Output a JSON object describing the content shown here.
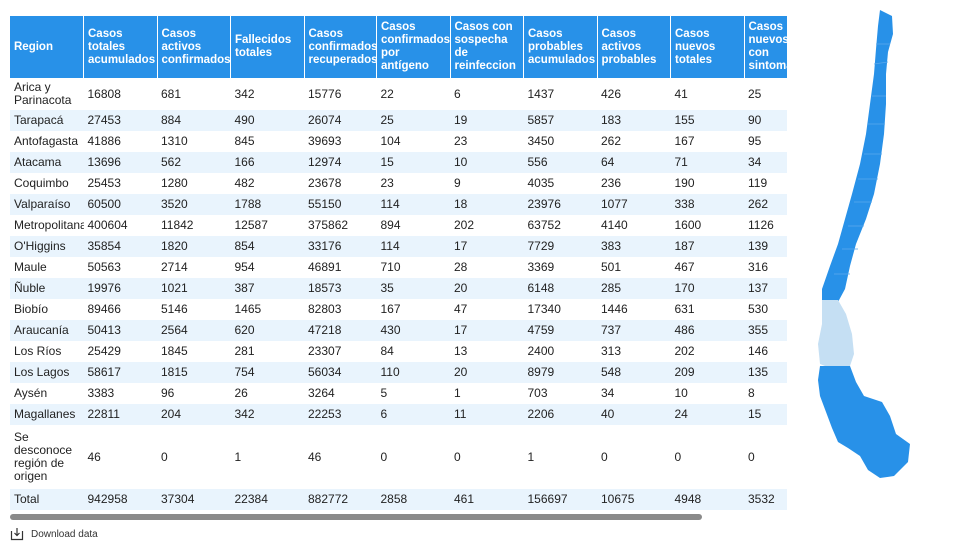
{
  "table": {
    "headers": [
      "Region",
      "Casos totales acumulados",
      "Casos activos confirmados",
      "Fallecidos totales",
      "Casos confirmados recuperados",
      "Casos confirmados por antígeno",
      "Casos con sospecha de reinfeccion",
      "Casos probables acumulados",
      "Casos activos probables",
      "Casos nuevos totales",
      "Casos nuevos con sintomas"
    ],
    "rows": [
      [
        "Arica y Parinacota",
        "16808",
        "681",
        "342",
        "15776",
        "22",
        "6",
        "1437",
        "426",
        "41",
        "25"
      ],
      [
        "Tarapacá",
        "27453",
        "884",
        "490",
        "26074",
        "25",
        "19",
        "5857",
        "183",
        "155",
        "90"
      ],
      [
        "Antofagasta",
        "41886",
        "1310",
        "845",
        "39693",
        "104",
        "23",
        "3450",
        "262",
        "167",
        "95"
      ],
      [
        "Atacama",
        "13696",
        "562",
        "166",
        "12974",
        "15",
        "10",
        "556",
        "64",
        "71",
        "34"
      ],
      [
        "Coquimbo",
        "25453",
        "1280",
        "482",
        "23678",
        "23",
        "9",
        "4035",
        "236",
        "190",
        "119"
      ],
      [
        "Valparaíso",
        "60500",
        "3520",
        "1788",
        "55150",
        "114",
        "18",
        "23976",
        "1077",
        "338",
        "262"
      ],
      [
        "Metropolitana",
        "400604",
        "11842",
        "12587",
        "375862",
        "894",
        "202",
        "63752",
        "4140",
        "1600",
        "1126"
      ],
      [
        "O'Higgins",
        "35854",
        "1820",
        "854",
        "33176",
        "114",
        "17",
        "7729",
        "383",
        "187",
        "139"
      ],
      [
        "Maule",
        "50563",
        "2714",
        "954",
        "46891",
        "710",
        "28",
        "3369",
        "501",
        "467",
        "316"
      ],
      [
        "Ñuble",
        "19976",
        "1021",
        "387",
        "18573",
        "35",
        "20",
        "6148",
        "285",
        "170",
        "137"
      ],
      [
        "Biobío",
        "89466",
        "5146",
        "1465",
        "82803",
        "167",
        "47",
        "17340",
        "1446",
        "631",
        "530"
      ],
      [
        "Araucanía",
        "50413",
        "2564",
        "620",
        "47218",
        "430",
        "17",
        "4759",
        "737",
        "486",
        "355"
      ],
      [
        "Los Ríos",
        "25429",
        "1845",
        "281",
        "23307",
        "84",
        "13",
        "2400",
        "313",
        "202",
        "146"
      ],
      [
        "Los Lagos",
        "58617",
        "1815",
        "754",
        "56034",
        "110",
        "20",
        "8979",
        "548",
        "209",
        "135"
      ],
      [
        "Aysén",
        "3383",
        "96",
        "26",
        "3264",
        "5",
        "1",
        "703",
        "34",
        "10",
        "8"
      ],
      [
        "Magallanes",
        "22811",
        "204",
        "342",
        "22253",
        "6",
        "11",
        "2206",
        "40",
        "24",
        "15"
      ],
      [
        "Se desconoce región de origen",
        "46",
        "0",
        "1",
        "46",
        "0",
        "0",
        "1",
        "0",
        "0",
        "0"
      ],
      [
        "Total",
        "942958",
        "37304",
        "22384",
        "882772",
        "2858",
        "461",
        "156697",
        "10675",
        "4948",
        "3532"
      ]
    ]
  },
  "download": {
    "label": "Download data",
    "icon": "download-icon"
  },
  "map": {
    "highlighted_region": "Aysén",
    "fill": "#2891e8",
    "highlight_fill": "#c5dff3",
    "border": "#5aa9ec"
  },
  "colors": {
    "header_bg": "#2891e8",
    "row_alt": "#e9f4fd",
    "scrollbar": "#8a8a8a"
  }
}
